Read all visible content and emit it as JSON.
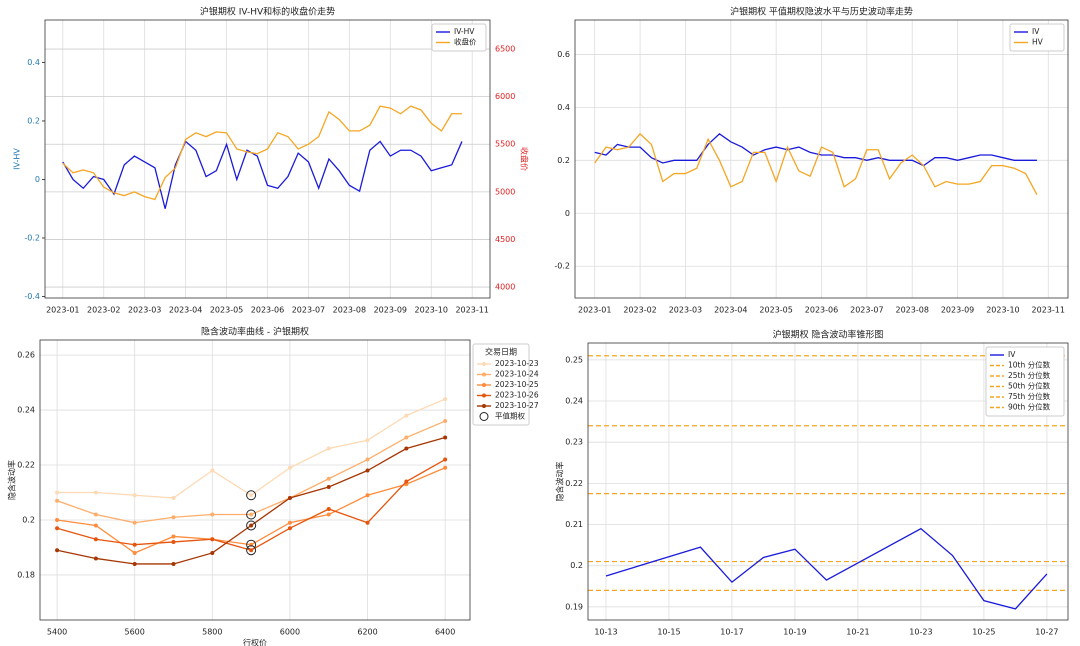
{
  "chart_data": [
    {
      "type": "line",
      "title": "沪银期权 IV-HV和标的收盘价走势",
      "ylabel": "IV-HV",
      "y2label": "收盘价",
      "ylabel_color": "#1f77b4",
      "y2label_color": "#e02020",
      "categories": [
        "2023-01",
        null,
        null,
        null,
        "2023-02",
        null,
        null,
        null,
        "2023-03",
        null,
        null,
        null,
        "2023-04",
        null,
        null,
        null,
        "2023-05",
        null,
        null,
        null,
        "2023-06",
        null,
        null,
        null,
        "2023-07",
        null,
        null,
        null,
        "2023-08",
        null,
        null,
        null,
        "2023-09",
        null,
        null,
        null,
        "2023-10",
        null,
        null,
        null,
        "2023-11"
      ],
      "series": [
        {
          "name": "IV-HV",
          "color": "#1a1adb",
          "values": [
            0.06,
            0.0,
            -0.03,
            0.01,
            0.0,
            -0.05,
            0.05,
            0.08,
            0.06,
            0.04,
            -0.1,
            0.05,
            0.13,
            0.1,
            0.01,
            0.03,
            0.12,
            0.0,
            0.1,
            0.08,
            -0.02,
            -0.03,
            0.01,
            0.09,
            0.06,
            -0.03,
            0.07,
            0.03,
            -0.02,
            -0.04,
            0.1,
            0.13,
            0.08,
            0.1,
            0.1,
            0.08,
            0.03,
            0.04,
            0.05,
            0.13,
            null
          ]
        },
        {
          "name": "收盘价",
          "color": "#f5a623",
          "axis": "y2",
          "values": [
            5300,
            5200,
            5230,
            5200,
            5050,
            4990,
            4960,
            5000,
            4950,
            4920,
            5150,
            5250,
            5550,
            5620,
            5580,
            5630,
            5620,
            5450,
            5420,
            5400,
            5450,
            5620,
            5580,
            5450,
            5500,
            5580,
            5840,
            5760,
            5640,
            5640,
            5700,
            5900,
            5880,
            5820,
            5900,
            5860,
            5720,
            5640,
            5820,
            5820,
            null
          ]
        }
      ],
      "ylim": [
        -0.405,
        0.545
      ],
      "yticks": [
        -0.4,
        -0.2,
        0,
        0.2,
        0.4
      ],
      "y2lim": [
        3885,
        6805
      ],
      "y2ticks": [
        4000,
        4500,
        5000,
        5500,
        6000,
        6500
      ],
      "grid": true,
      "legend": "upper right"
    },
    {
      "type": "line",
      "title": "沪银期权 平值期权隐波水平与历史波动率走势",
      "categories": [
        "2023-01",
        null,
        null,
        null,
        "2023-02",
        null,
        null,
        null,
        "2023-03",
        null,
        null,
        null,
        "2023-04",
        null,
        null,
        null,
        "2023-05",
        null,
        null,
        null,
        "2023-06",
        null,
        null,
        null,
        "2023-07",
        null,
        null,
        null,
        "2023-08",
        null,
        null,
        null,
        "2023-09",
        null,
        null,
        null,
        "2023-10",
        null,
        null,
        null,
        "2023-11"
      ],
      "series": [
        {
          "name": "IV",
          "color": "#1a1adb",
          "values": [
            0.23,
            0.22,
            0.26,
            0.25,
            0.25,
            0.21,
            0.19,
            0.2,
            0.2,
            0.2,
            0.26,
            0.3,
            0.27,
            0.25,
            0.22,
            0.24,
            0.25,
            0.24,
            0.25,
            0.23,
            0.22,
            0.22,
            0.21,
            0.21,
            0.2,
            0.21,
            0.2,
            0.2,
            0.2,
            0.18,
            0.21,
            0.21,
            0.2,
            0.21,
            0.22,
            0.22,
            0.21,
            0.2,
            0.2,
            0.2,
            null
          ]
        },
        {
          "name": "HV",
          "color": "#f5a623",
          "values": [
            0.19,
            0.25,
            0.24,
            0.25,
            0.3,
            0.26,
            0.12,
            0.15,
            0.15,
            0.17,
            0.28,
            0.2,
            0.1,
            0.12,
            0.23,
            0.23,
            0.12,
            0.25,
            0.16,
            0.14,
            0.25,
            0.23,
            0.1,
            0.13,
            0.24,
            0.24,
            0.13,
            0.19,
            0.22,
            0.18,
            0.1,
            0.12,
            0.11,
            0.11,
            0.12,
            0.18,
            0.18,
            0.17,
            0.15,
            0.07,
            null
          ]
        }
      ],
      "ylim": [
        -0.32,
        0.73
      ],
      "yticks": [
        -0.2,
        0,
        0.2,
        0.4,
        0.6
      ],
      "grid": true,
      "legend": "upper right"
    },
    {
      "type": "line",
      "title": "隐含波动率曲线 - 沪银期权",
      "xlabel": "行权价",
      "ylabel": "隐含波动率",
      "x": [
        5400,
        5500,
        5600,
        5700,
        5800,
        5900,
        6000,
        6100,
        6200,
        6300,
        6400
      ],
      "series": [
        {
          "name": "2023-10-23",
          "color": "#fdd9b4",
          "values": [
            0.21,
            0.21,
            0.209,
            0.208,
            0.218,
            0.209,
            0.219,
            0.226,
            0.229,
            0.238,
            0.244
          ]
        },
        {
          "name": "2023-10-24",
          "color": "#fdae6b",
          "values": [
            0.207,
            0.202,
            0.199,
            0.201,
            0.202,
            0.202,
            0.208,
            0.215,
            0.222,
            0.23,
            0.236
          ]
        },
        {
          "name": "2023-10-25",
          "color": "#fd8d3c",
          "values": [
            0.2,
            0.198,
            0.188,
            0.194,
            0.193,
            0.191,
            0.199,
            0.202,
            0.209,
            0.213,
            0.219
          ]
        },
        {
          "name": "2023-10-26",
          "color": "#e6550d",
          "values": [
            0.197,
            0.193,
            0.191,
            0.192,
            0.193,
            0.189,
            0.197,
            0.204,
            0.199,
            0.214,
            0.222
          ]
        },
        {
          "name": "2023-10-27",
          "color": "#a63603",
          "values": [
            0.189,
            0.186,
            0.184,
            0.184,
            0.188,
            0.198,
            0.208,
            0.212,
            0.218,
            0.226,
            0.23
          ]
        }
      ],
      "atm_label": "平值期权",
      "atm_strike": 5900,
      "legend_title": "交易日期",
      "xlim": [
        5356,
        6464
      ],
      "xticks": [
        5400,
        5600,
        5800,
        6000,
        6200,
        6400
      ],
      "ylim": [
        0.1636,
        0.2655
      ],
      "yticks": [
        0.18,
        0.2,
        0.22,
        0.24,
        0.26
      ],
      "grid": true,
      "legend": "outside right",
      "markers": true
    },
    {
      "type": "line",
      "title": "沪银期权 隐含波动率锥形图",
      "ylabel": "隐含波动率",
      "x": [
        13,
        16,
        17,
        18,
        19,
        20,
        23,
        24,
        25,
        26,
        27
      ],
      "series": [
        {
          "name": "IV",
          "color": "#1a1adb",
          "values": [
            0.1975,
            0.2045,
            0.196,
            0.202,
            0.204,
            0.1965,
            0.209,
            0.2025,
            0.1915,
            0.1895,
            0.198
          ]
        }
      ],
      "reference_lines": [
        {
          "name": "10th 分位数",
          "value": 0.194
        },
        {
          "name": "25th 分位数",
          "value": 0.201
        },
        {
          "name": "50th 分位数",
          "value": 0.2175
        },
        {
          "name": "75th 分位数",
          "value": 0.234
        },
        {
          "name": "90th 分位数",
          "value": 0.251
        }
      ],
      "reference_color": "#f5a623",
      "xlim": [
        12.43,
        27.67
      ],
      "xticks": [
        {
          "value": 13,
          "label": "10-13"
        },
        {
          "value": 15,
          "label": "10-15"
        },
        {
          "value": 17,
          "label": "10-17"
        },
        {
          "value": 19,
          "label": "10-19"
        },
        {
          "value": 21,
          "label": "10-21"
        },
        {
          "value": 23,
          "label": "10-23"
        },
        {
          "value": 25,
          "label": "10-25"
        },
        {
          "value": 27,
          "label": "10-27"
        }
      ],
      "ylim": [
        0.1868,
        0.2541
      ],
      "yticks": [
        0.19,
        0.2,
        0.21,
        0.22,
        0.23,
        0.24,
        0.25
      ],
      "grid": true,
      "legend": "upper right"
    }
  ]
}
